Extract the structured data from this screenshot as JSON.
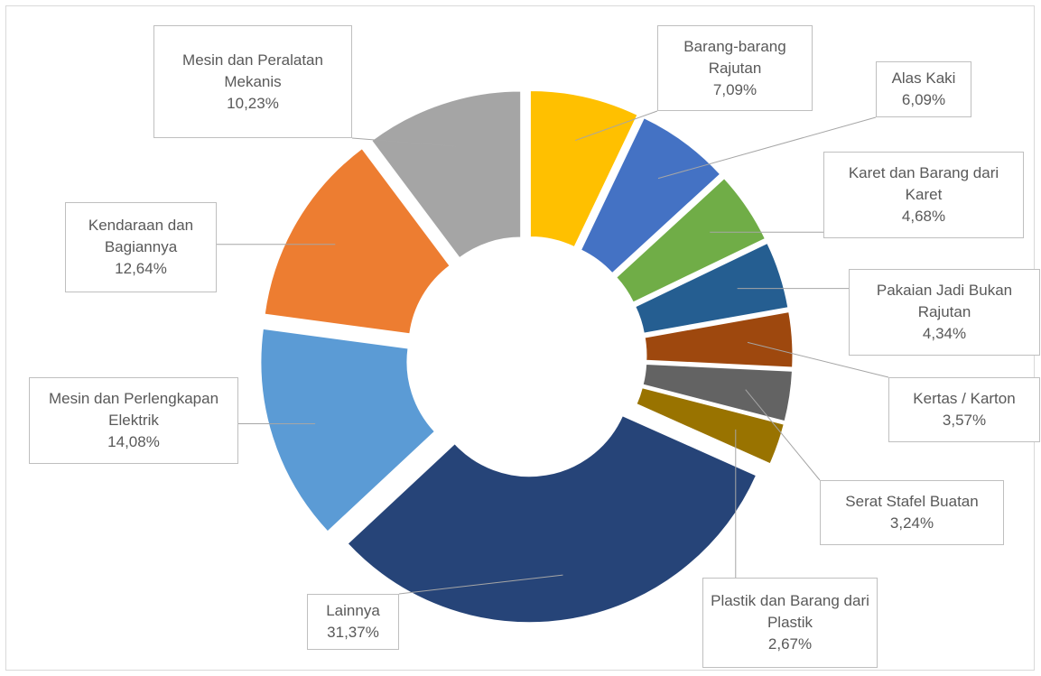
{
  "chart_data": {
    "type": "donut",
    "categories": [
      "Barang-barang Rajutan",
      "Alas Kaki",
      "Karet dan Barang dari Karet",
      "Pakaian Jadi Bukan Rajutan",
      "Kertas / Karton",
      "Serat Stafel Buatan",
      "Plastik dan Barang dari Plastik",
      "Lainnya",
      "Mesin dan Perlengkapan Elektrik",
      "Kendaraan dan Bagiannya",
      "Mesin dan Peralatan Mekanis"
    ],
    "values": [
      7.09,
      6.09,
      4.68,
      4.34,
      3.57,
      3.24,
      2.67,
      31.37,
      14.08,
      12.64,
      10.23
    ],
    "value_labels": [
      "7,09%",
      "6,09%",
      "4,68%",
      "4,34%",
      "3,57%",
      "3,24%",
      "2,67%",
      "31,37%",
      "14,08%",
      "12,64%",
      "10,23%"
    ],
    "colors": [
      "#ffc000",
      "#4472c4",
      "#70ad47",
      "#255e91",
      "#9e480e",
      "#636363",
      "#997300",
      "#264478",
      "#5b9bd5",
      "#ed7d31",
      "#a5a5a5"
    ]
  }
}
